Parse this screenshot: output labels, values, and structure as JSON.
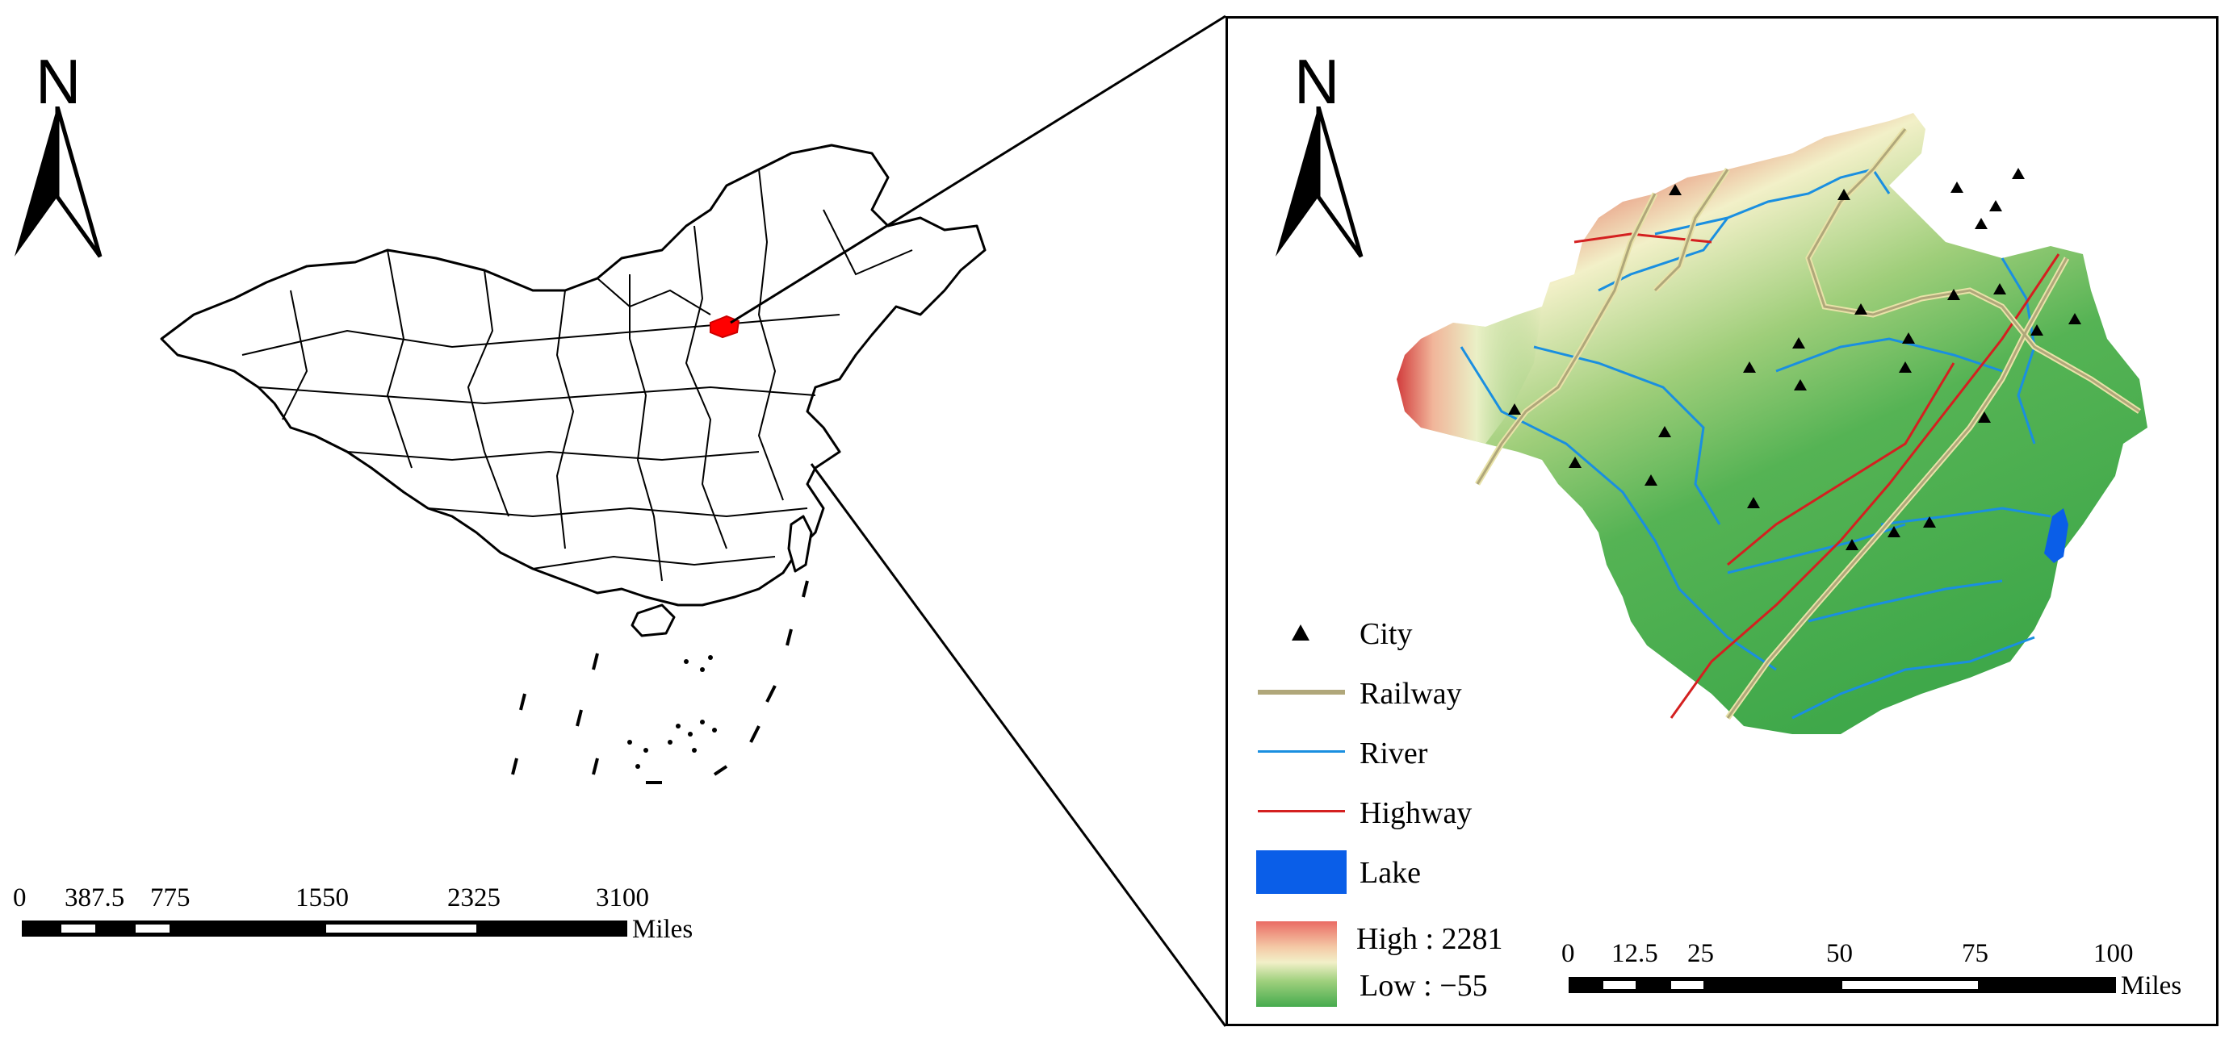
{
  "left_map": {
    "north_label": "N",
    "scale_bar": {
      "ticks": [
        "0",
        "387.5",
        "775",
        "1550",
        "2325",
        "3100"
      ],
      "units": "Miles"
    }
  },
  "right_map": {
    "north_label": "N",
    "legend": {
      "city": "City",
      "railway": "Railway",
      "river": "River",
      "highway": "Highway",
      "lake": "Lake",
      "elev_high": "High : 2281",
      "elev_low": "Low : −55"
    },
    "scale_bar": {
      "ticks": [
        "0",
        "12.5",
        "25",
        "50",
        "75",
        "100"
      ],
      "units": "Miles"
    }
  },
  "colors": {
    "highlight_region": "#ff0000",
    "railway": "#b0a77a",
    "river": "#1a8fe0",
    "highway": "#d42020",
    "lake": "#0a5ee8",
    "elev_high": "#d83a3a",
    "elev_mid": "#f2f0c8",
    "elev_low": "#3fa84a"
  },
  "icons": [
    "north-arrow-icon",
    "city-triangle-icon"
  ]
}
